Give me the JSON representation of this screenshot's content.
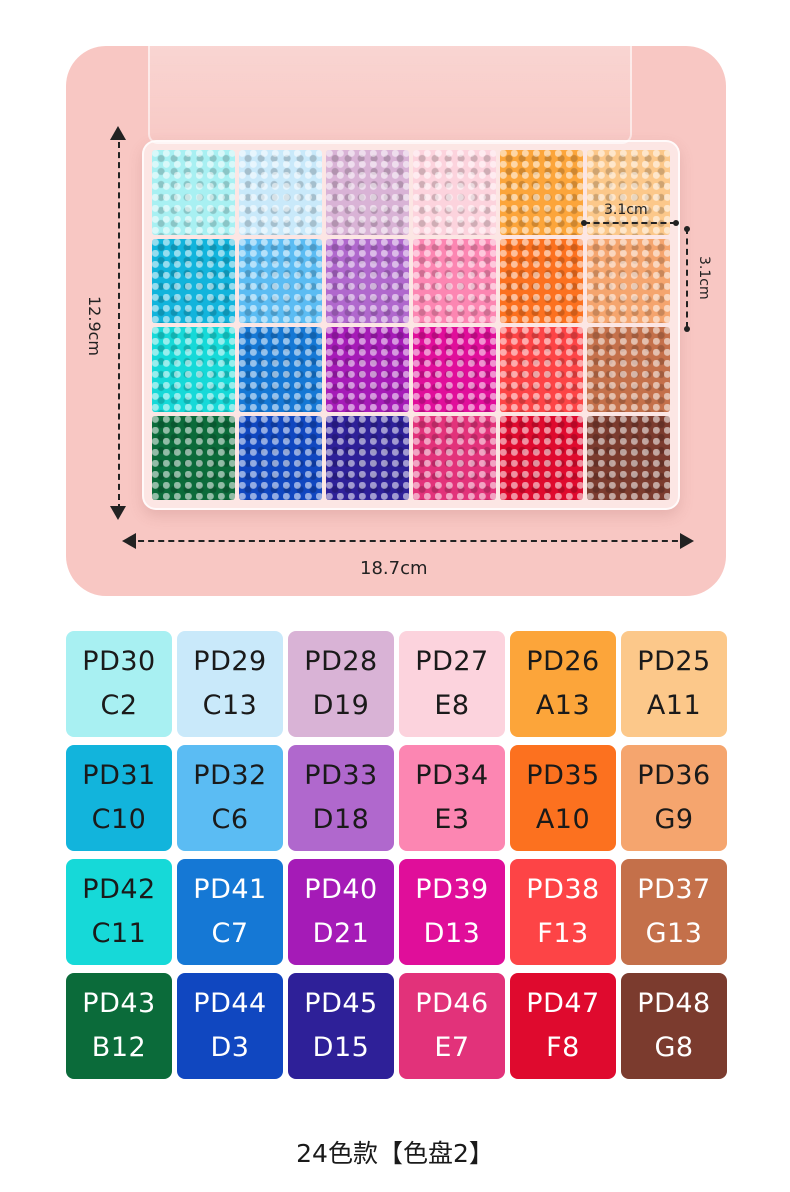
{
  "dimensions": {
    "width": "18.7cm",
    "height": "12.9cm",
    "cell_width": "3.1cm",
    "cell_height": "3.1cm"
  },
  "colors": {
    "hero_background": "#f8c7c3",
    "text_dark": "#1a1a1a",
    "text_light": "#ffffff"
  },
  "swatches": [
    {
      "code": "PD30",
      "sub": "C2",
      "color": "#a8f0f2",
      "text": "#1a1a1a"
    },
    {
      "code": "PD29",
      "sub": "C13",
      "color": "#c9e9fa",
      "text": "#1a1a1a"
    },
    {
      "code": "PD28",
      "sub": "D19",
      "color": "#d9b3d6",
      "text": "#1a1a1a"
    },
    {
      "code": "PD27",
      "sub": "E8",
      "color": "#fcd3dd",
      "text": "#1a1a1a"
    },
    {
      "code": "PD26",
      "sub": "A13",
      "color": "#fca53a",
      "text": "#1a1a1a"
    },
    {
      "code": "PD25",
      "sub": "A11",
      "color": "#fcc88a",
      "text": "#1a1a1a"
    },
    {
      "code": "PD31",
      "sub": "C10",
      "color": "#12b4dc",
      "text": "#1a1a1a"
    },
    {
      "code": "PD32",
      "sub": "C6",
      "color": "#5bbcf3",
      "text": "#1a1a1a"
    },
    {
      "code": "PD33",
      "sub": "D18",
      "color": "#b068cd",
      "text": "#1a1a1a"
    },
    {
      "code": "PD34",
      "sub": "E3",
      "color": "#fc86b2",
      "text": "#1a1a1a"
    },
    {
      "code": "PD35",
      "sub": "A10",
      "color": "#fc711f",
      "text": "#1a1a1a"
    },
    {
      "code": "PD36",
      "sub": "G9",
      "color": "#f5a56e",
      "text": "#1a1a1a"
    },
    {
      "code": "PD42",
      "sub": "C11",
      "color": "#16d9d8",
      "text": "#1a1a1a"
    },
    {
      "code": "PD41",
      "sub": "C7",
      "color": "#1578d5",
      "text": "#ffffff"
    },
    {
      "code": "PD40",
      "sub": "D21",
      "color": "#a51bb7",
      "text": "#ffffff"
    },
    {
      "code": "PD39",
      "sub": "D13",
      "color": "#e00e9a",
      "text": "#ffffff"
    },
    {
      "code": "PD38",
      "sub": "F13",
      "color": "#fd4446",
      "text": "#ffffff"
    },
    {
      "code": "PD37",
      "sub": "G13",
      "color": "#c4704a",
      "text": "#ffffff"
    },
    {
      "code": "PD43",
      "sub": "B12",
      "color": "#0b6b3a",
      "text": "#ffffff"
    },
    {
      "code": "PD44",
      "sub": "D3",
      "color": "#1047c0",
      "text": "#ffffff"
    },
    {
      "code": "PD45",
      "sub": "D15",
      "color": "#2e2098",
      "text": "#ffffff"
    },
    {
      "code": "PD46",
      "sub": "E7",
      "color": "#e2327a",
      "text": "#ffffff"
    },
    {
      "code": "PD47",
      "sub": "F8",
      "color": "#df0a2e",
      "text": "#ffffff"
    },
    {
      "code": "PD48",
      "sub": "G8",
      "color": "#7b3b2e",
      "text": "#ffffff"
    }
  ],
  "caption": "24色款【色盘2】"
}
